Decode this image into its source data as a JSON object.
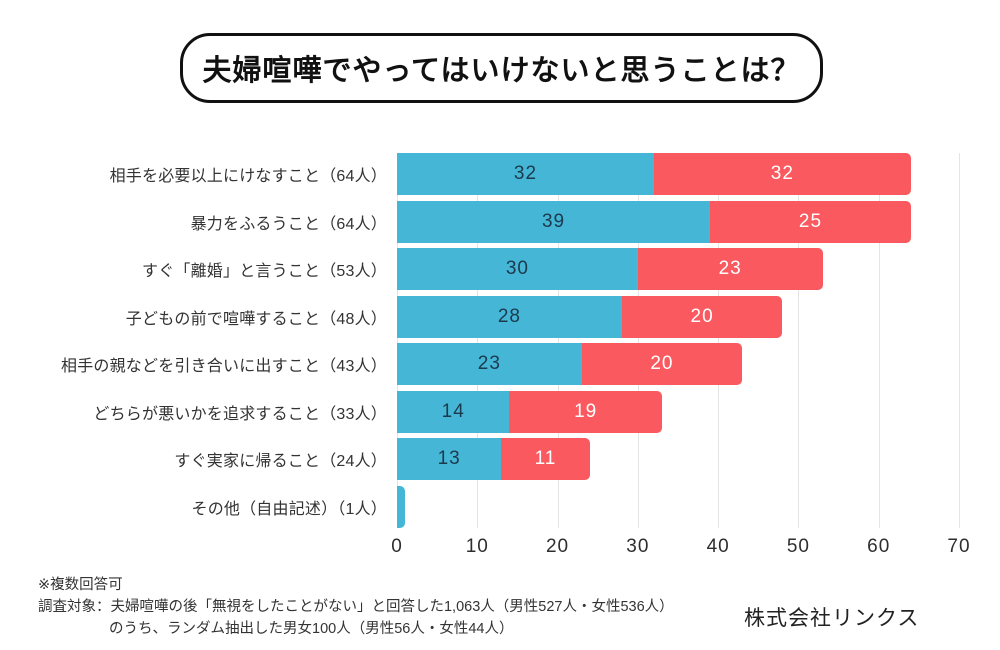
{
  "title": "夫婦喧嘩でやってはいけないと思うことは？",
  "chart_data": {
    "type": "bar",
    "orientation": "horizontal",
    "stacked": true,
    "title": "夫婦喧嘩でやってはいけないと思うことは？",
    "categories": [
      "相手を必要以上にけなすこと（64人）",
      "暴力をふるうこと（64人）",
      "すぐ「離婚」と言うこと（53人）",
      "子どもの前で喧嘩すること（48人）",
      "相手の親などを引き合いに出すこと（43人）",
      "どちらが悪いかを追求すること（33人）",
      "すぐ実家に帰ること（24人）",
      "その他（自由記述）（1人）"
    ],
    "series": [
      {
        "name": "blue-segment",
        "color": "#45B6D6",
        "label_color": "#1C3A4D",
        "values": [
          32,
          39,
          30,
          28,
          23,
          14,
          13,
          1
        ]
      },
      {
        "name": "red-segment",
        "color": "#FA5A5F",
        "label_color": "#FFFFFF",
        "values": [
          32,
          25,
          23,
          20,
          20,
          19,
          11,
          0
        ]
      }
    ],
    "totals": [
      64,
      64,
      53,
      48,
      43,
      33,
      24,
      1
    ],
    "xlim": [
      0,
      70
    ],
    "x_ticks": [
      0,
      10,
      20,
      30,
      40,
      50,
      60,
      70
    ],
    "grid": true,
    "legend": false,
    "gridline_color": "#e4e4e4"
  },
  "notes": {
    "line1": "※複数回答可",
    "line2": "調査対象：夫婦喧嘩の後「無視をしたことがない」と回答した1,063人（男性527人・女性536人）",
    "line3": "のうち、ランダム抽出した男女100人（男性56人・女性44人）"
  },
  "company": "株式会社リンクス"
}
